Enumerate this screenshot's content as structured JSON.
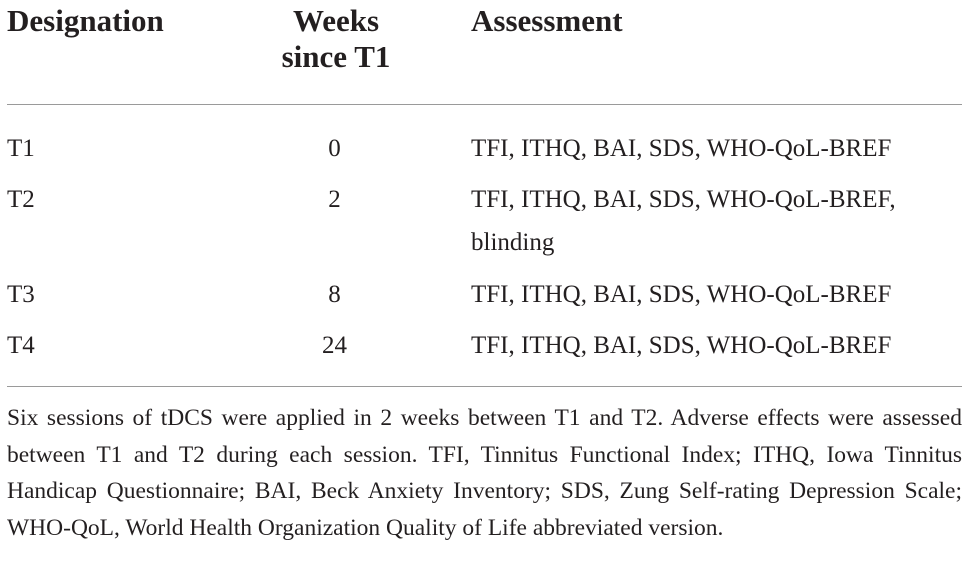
{
  "table": {
    "headers": {
      "designation": "Designation",
      "weeks_line1": "Weeks",
      "weeks_line2": "since T1",
      "assessment": "Assessment"
    },
    "rows": [
      {
        "designation": "T1",
        "weeks": "0",
        "assessment_line1": "TFI, ITHQ, BAI, SDS, WHO-QoL-BREF",
        "assessment_line2": ""
      },
      {
        "designation": "T2",
        "weeks": "2",
        "assessment_line1": "TFI, ITHQ, BAI, SDS, WHO-QoL-BREF,",
        "assessment_line2": "blinding"
      },
      {
        "designation": "T3",
        "weeks": "8",
        "assessment_line1": "TFI, ITHQ, BAI, SDS, WHO-QoL-BREF",
        "assessment_line2": ""
      },
      {
        "designation": "T4",
        "weeks": "24",
        "assessment_line1": "TFI, ITHQ, BAI, SDS, WHO-QoL-BREF",
        "assessment_line2": ""
      }
    ]
  },
  "footnote": "Six sessions of tDCS were applied in 2 weeks between T1 and T2. Adverse effects were assessed between T1 and T2 during each session. TFI, Tinnitus Functional Index; ITHQ, Iowa Tinnitus Handicap Questionnaire; BAI, Beck Anxiety Inventory; SDS, Zung Self-rating Depression Scale; WHO-QoL, World Health Organization Quality of Life abbreviated version."
}
